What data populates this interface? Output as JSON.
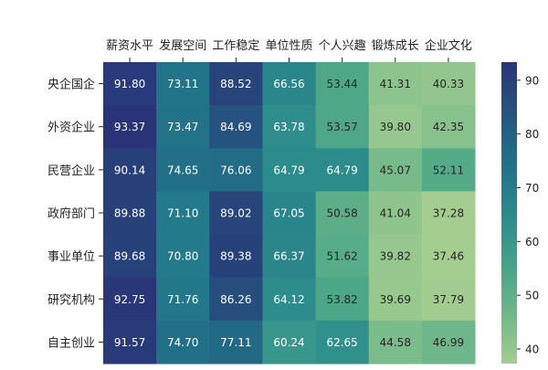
{
  "chart_data": {
    "type": "heatmap",
    "x_labels": [
      "薪资水平",
      "发展空间",
      "工作稳定",
      "单位性质",
      "个人兴趣",
      "锻炼成长",
      "企业文化"
    ],
    "y_labels": [
      "央企国企",
      "外资企业",
      "民营企业",
      "政府部门",
      "事业单位",
      "研究机构",
      "自主创业"
    ],
    "values": [
      [
        91.8,
        73.11,
        88.52,
        66.56,
        53.44,
        41.31,
        40.33
      ],
      [
        93.37,
        73.47,
        84.69,
        63.78,
        53.57,
        39.8,
        42.35
      ],
      [
        90.14,
        74.65,
        76.06,
        64.79,
        64.79,
        45.07,
        52.11
      ],
      [
        89.88,
        71.1,
        89.02,
        67.05,
        50.58,
        41.04,
        37.28
      ],
      [
        89.68,
        70.8,
        89.38,
        66.37,
        51.62,
        39.82,
        37.46
      ],
      [
        92.75,
        71.76,
        86.26,
        64.12,
        53.82,
        39.69,
        37.79
      ],
      [
        91.57,
        74.7,
        77.11,
        60.24,
        62.65,
        44.58,
        46.99
      ]
    ],
    "x_position": "top",
    "colormap": "crest",
    "color_range": [
      37.28,
      93.37
    ],
    "colorbar_ticks": [
      40,
      50,
      60,
      70,
      80,
      90
    ]
  }
}
